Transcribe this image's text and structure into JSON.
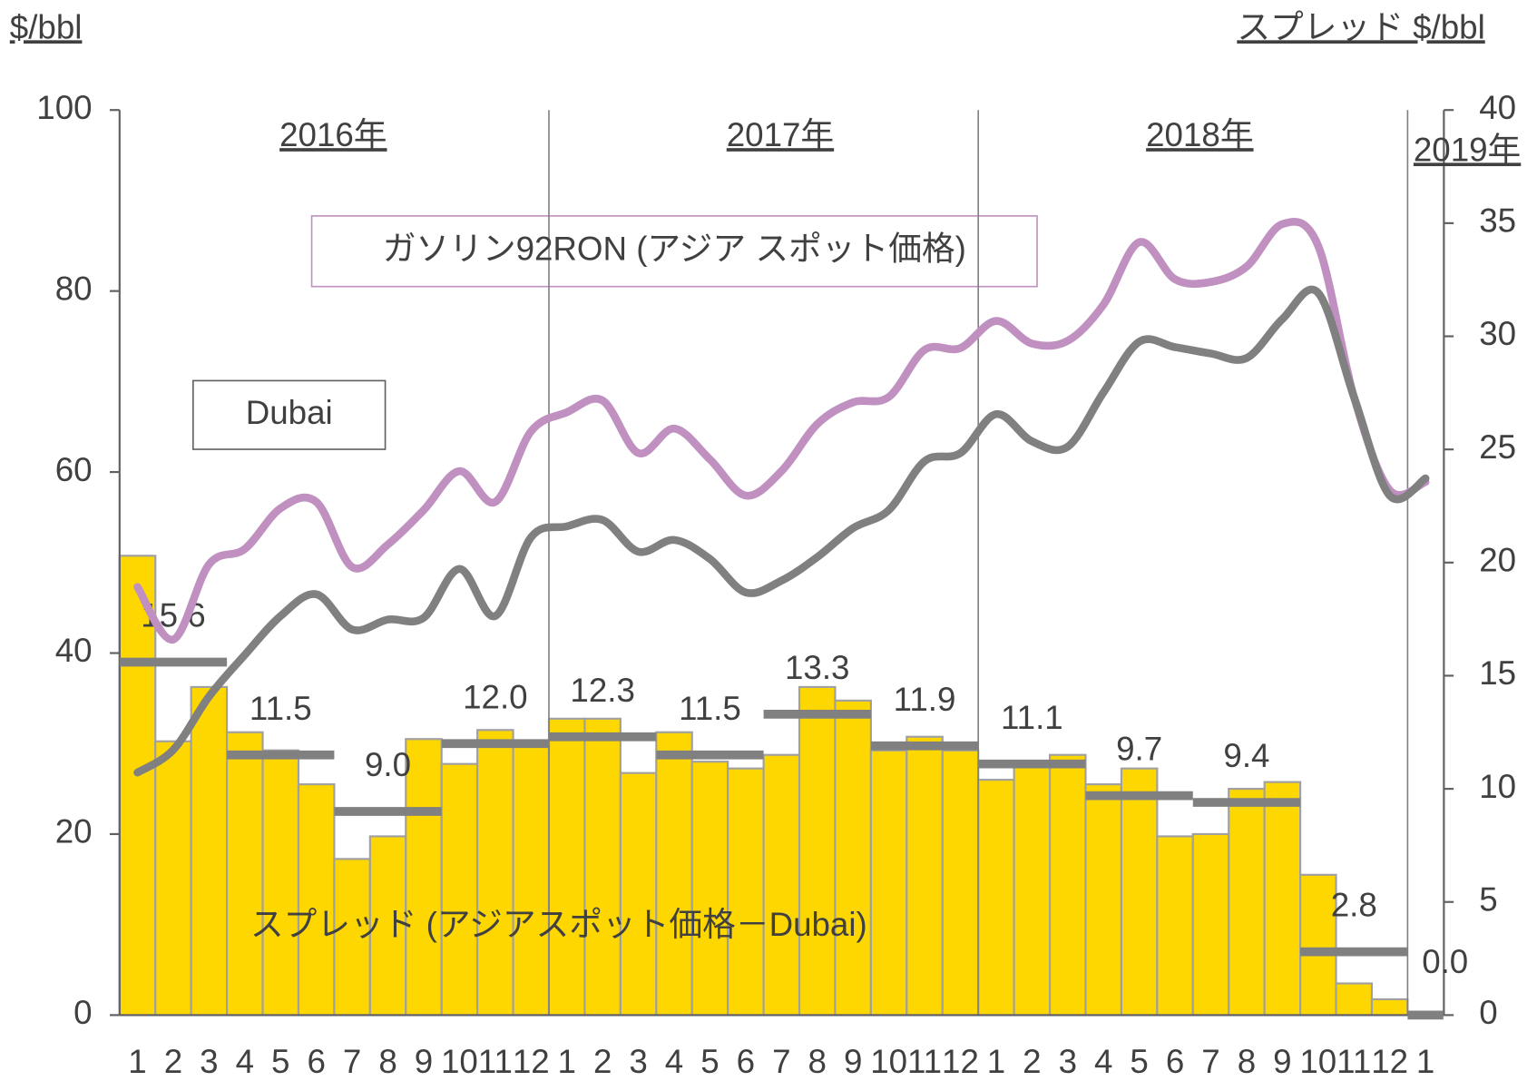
{
  "chart_data": {
    "type": "bar",
    "left_unit": "$/bbl",
    "right_unit": "スプレッド $/bbl",
    "years": [
      "2016年",
      "2017年",
      "2018年",
      "2019年"
    ],
    "annotations": [
      "ガソリン92RON (アジア スポット価格)",
      "Dubai",
      "スプレッド (アジアスポット価格－Dubai)"
    ],
    "categories": [
      "1",
      "2",
      "3",
      "4",
      "5",
      "6",
      "7",
      "8",
      "9",
      "10",
      "11",
      "12",
      "1",
      "2",
      "3",
      "4",
      "5",
      "6",
      "7",
      "8",
      "9",
      "10",
      "11",
      "12",
      "1",
      "2",
      "3",
      "4",
      "5",
      "6",
      "7",
      "8",
      "9",
      "10",
      "11",
      "12",
      "1"
    ],
    "ylim": [
      0,
      100
    ],
    "yticks": [
      0,
      20,
      40,
      60,
      80,
      100
    ],
    "y2lim": [
      0,
      40
    ],
    "y2ticks": [
      0,
      5,
      10,
      15,
      20,
      25,
      30,
      35,
      40
    ],
    "series": [
      {
        "name": "スプレッド (アジアスポット価格－Dubai)",
        "type": "bar",
        "axis": "y2",
        "color": "#ffd700",
        "values": [
          20.3,
          12.1,
          14.5,
          12.5,
          11.7,
          10.2,
          6.9,
          7.9,
          12.2,
          11.1,
          12.6,
          11.9,
          13.1,
          13.1,
          10.7,
          12.5,
          11.2,
          10.9,
          11.5,
          14.5,
          13.9,
          11.7,
          12.3,
          11.7,
          10.4,
          11.1,
          11.5,
          10.2,
          10.9,
          7.9,
          8.0,
          10.0,
          10.3,
          6.2,
          1.4,
          0.7,
          0
        ]
      },
      {
        "name": "ガソリン92RON (アジア スポット価格)",
        "type": "line",
        "color": "#c090c0",
        "values": [
          47.3,
          41.5,
          49.8,
          51.5,
          56.0,
          56.7,
          49.5,
          52.0,
          55.8,
          60.1,
          56.7,
          64.5,
          66.6,
          67.9,
          62.1,
          64.8,
          61.4,
          57.4,
          60.1,
          65.3,
          67.7,
          68.3,
          73.5,
          73.7,
          76.7,
          74.2,
          74.5,
          78.5,
          85.4,
          81.3,
          81.0,
          82.7,
          87.4,
          85.0,
          68.3,
          58.0,
          58.9
        ]
      },
      {
        "name": "Dubai",
        "type": "line",
        "color": "#808080",
        "values": [
          26.8,
          29.3,
          35.2,
          39.8,
          44.1,
          46.5,
          42.6,
          43.7,
          43.9,
          49.3,
          44.1,
          52.8,
          54.0,
          54.7,
          51.2,
          52.5,
          50.4,
          46.7,
          48.0,
          50.6,
          53.8,
          55.8,
          61.2,
          62.1,
          66.4,
          63.4,
          62.8,
          68.8,
          74.4,
          73.8,
          73.1,
          72.6,
          76.9,
          79.8,
          68.3,
          57.4,
          59.3
        ]
      }
    ],
    "quarter_averages": {
      "axis": "y2",
      "color": "#808080",
      "values": [
        15.6,
        11.5,
        9.0,
        12.0,
        12.3,
        11.5,
        13.3,
        11.9,
        11.1,
        9.7,
        9.4,
        2.8,
        0.0
      ],
      "value_labels": [
        "15.6",
        "11.5",
        "9.0",
        "12.0",
        "12.3",
        "11.5",
        "13.3",
        "11.9",
        "11.1",
        "9.7",
        "9.4",
        "2.8",
        "0.0"
      ]
    }
  }
}
